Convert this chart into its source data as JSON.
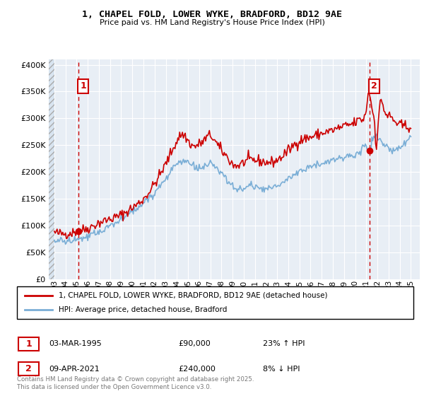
{
  "title": "1, CHAPEL FOLD, LOWER WYKE, BRADFORD, BD12 9AE",
  "subtitle": "Price paid vs. HM Land Registry's House Price Index (HPI)",
  "ylabel_values": [
    "£0",
    "£50K",
    "£100K",
    "£150K",
    "£200K",
    "£250K",
    "£300K",
    "£350K",
    "£400K"
  ],
  "ylim": [
    0,
    410000
  ],
  "yticks": [
    0,
    50000,
    100000,
    150000,
    200000,
    250000,
    300000,
    350000,
    400000
  ],
  "xlim_start": 1992.5,
  "xlim_end": 2025.8,
  "background_color": "#ffffff",
  "plot_bg_color": "#e8eef5",
  "grid_color": "#ffffff",
  "red_color": "#cc0000",
  "blue_color": "#7aaed6",
  "marker1_year": 1995.17,
  "marker1_value": 90000,
  "marker2_year": 2021.27,
  "marker2_value": 240000,
  "legend_line1": "1, CHAPEL FOLD, LOWER WYKE, BRADFORD, BD12 9AE (detached house)",
  "legend_line2": "HPI: Average price, detached house, Bradford",
  "annotation1_label": "1",
  "annotation1_date": "03-MAR-1995",
  "annotation1_price": "£90,000",
  "annotation1_hpi": "23% ↑ HPI",
  "annotation2_label": "2",
  "annotation2_date": "09-APR-2021",
  "annotation2_price": "£240,000",
  "annotation2_hpi": "8% ↓ HPI",
  "footer": "Contains HM Land Registry data © Crown copyright and database right 2025.\nThis data is licensed under the Open Government Licence v3.0.",
  "xtick_years": [
    1993,
    1994,
    1995,
    1996,
    1997,
    1998,
    1999,
    2000,
    2001,
    2002,
    2003,
    2004,
    2005,
    2006,
    2007,
    2008,
    2009,
    2010,
    2011,
    2012,
    2013,
    2014,
    2015,
    2016,
    2017,
    2018,
    2019,
    2020,
    2021,
    2022,
    2023,
    2024,
    2025
  ]
}
